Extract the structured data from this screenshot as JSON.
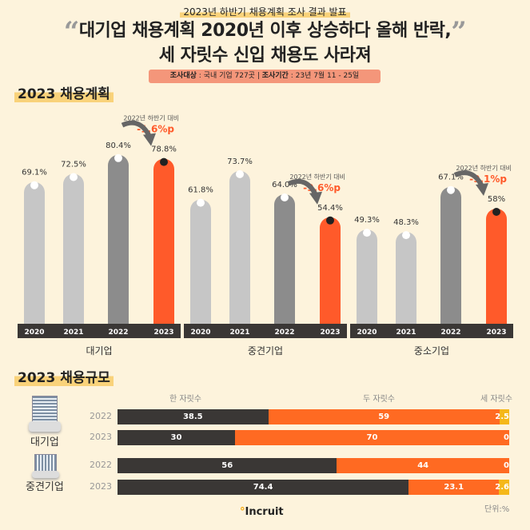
{
  "header": {
    "kicker": "2023년 하반기 채용계획 조사 결과 발표",
    "title_line1": "대기업 채용계획 2020년 이후 상승하다 올해 반락,",
    "title_line2": "세 자릿수 신입 채용도 사라져",
    "meta_label1": "조사대상",
    "meta_value1": " : 국내 기업 727곳  |  ",
    "meta_label2": "조사기간",
    "meta_value2": " : 23년 7월 11 - 25일"
  },
  "section1_title": "2023 채용계획",
  "section2_title": "2023 채용규모",
  "colors": {
    "light": "#c6c6c6",
    "mid": "#8c8c8c",
    "accent": "#ff5a2a",
    "dark": "#3a3735",
    "orange": "#ff6a22",
    "yellow": "#f5b819",
    "background": "#fdf3dc"
  },
  "chart_data": [
    {
      "type": "bar",
      "categories": [
        "2020",
        "2021",
        "2022",
        "2023"
      ],
      "groups": [
        {
          "name": "대기업",
          "values": [
            69.1,
            72.5,
            80.4,
            78.8
          ],
          "labels": [
            "69.1%",
            "72.5%",
            "80.4%",
            "78.8%"
          ],
          "change_note": "2022년 하반기 대비",
          "change": "-1.6%p"
        },
        {
          "name": "중견기업",
          "values": [
            61.8,
            73.7,
            64.0,
            54.4
          ],
          "labels": [
            "61.8%",
            "73.7%",
            "64.0%",
            "54.4%"
          ],
          "change_note": "2022년 하반기 대비",
          "change": "-9.6%p"
        },
        {
          "name": "중소기업",
          "values": [
            49.3,
            48.3,
            67.1,
            58
          ],
          "labels": [
            "49.3%",
            "48.3%",
            "67.1%",
            "58%"
          ],
          "change_note": "2022년 하반기 대비",
          "change": "-9.1%p"
        }
      ]
    },
    {
      "type": "bar",
      "orientation": "horizontal",
      "stacked": true,
      "series_names": [
        "한 자릿수",
        "두 자릿수",
        "세 자릿수"
      ],
      "unit": "단위:%",
      "groups": [
        {
          "name": "대기업",
          "rows": [
            {
              "year": "2022",
              "values": [
                38.5,
                59,
                2.5
              ]
            },
            {
              "year": "2023",
              "values": [
                30,
                70,
                0
              ]
            }
          ]
        },
        {
          "name": "중견기업",
          "rows": [
            {
              "year": "2022",
              "values": [
                56,
                44,
                0
              ]
            },
            {
              "year": "2023",
              "values": [
                74.4,
                23.1,
                2.6
              ]
            }
          ]
        }
      ]
    }
  ],
  "logo": "Incruit"
}
